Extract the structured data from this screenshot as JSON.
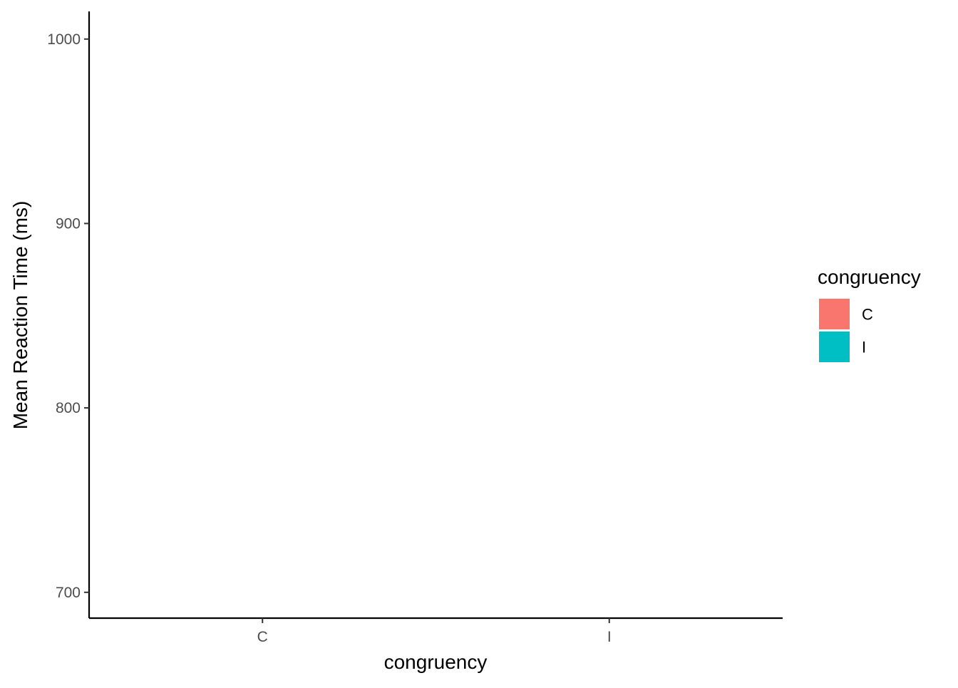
{
  "chart_data": {
    "type": "bar",
    "categories": [
      "C",
      "I"
    ],
    "series": [
      {
        "name": "C",
        "values": [
          null,
          null
        ],
        "color": "#F8766D"
      },
      {
        "name": "I",
        "values": [
          null,
          null
        ],
        "color": "#00BFC4"
      }
    ],
    "xlabel": "congruency",
    "ylabel": "Mean Reaction Time (ms)",
    "ylim": [
      686,
      1015
    ],
    "yticks": [
      700,
      800,
      900,
      1000
    ],
    "grid": false,
    "legend": {
      "title": "congruency",
      "placement": "right",
      "entries": [
        {
          "label": "C",
          "color": "#F8766D"
        },
        {
          "label": "I",
          "color": "#00BFC4"
        }
      ]
    }
  }
}
